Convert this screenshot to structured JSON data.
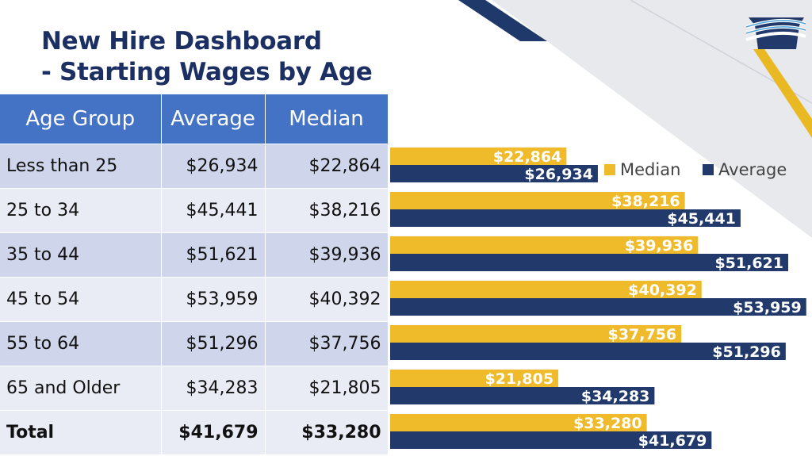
{
  "title_line1": "New Hire Dashboard",
  "title_line2": "- Starting Wages by Age",
  "table": {
    "headers": [
      "Age Group",
      "Average",
      "Median"
    ],
    "rows": [
      {
        "age": "Less than 25",
        "average": "$26,934",
        "median": "$22,864"
      },
      {
        "age": "25 to 34",
        "average": "$45,441",
        "median": "$38,216"
      },
      {
        "age": "35 to 44",
        "average": "$51,621",
        "median": "$39,936"
      },
      {
        "age": "45 to 54",
        "average": "$53,959",
        "median": "$40,392"
      },
      {
        "age": "55 to 64",
        "average": "$51,296",
        "median": "$37,756"
      },
      {
        "age": "65 and Older",
        "average": "$34,283",
        "median": "$21,805"
      },
      {
        "age": "Total",
        "average": "$41,679",
        "median": "$33,280"
      }
    ]
  },
  "colors": {
    "title": "#1c2f62",
    "header_bg": "#4472c4",
    "median": "#f0bb2b",
    "average": "#213a6b",
    "row_dark": "#cfd5ea",
    "row_light": "#e9ebf5"
  },
  "chart_data": {
    "type": "bar",
    "orientation": "horizontal",
    "categories": [
      "Less than 25",
      "25 to 34",
      "35 to 44",
      "45 to 54",
      "55 to 64",
      "65 and Older",
      "Total"
    ],
    "series": [
      {
        "name": "Median",
        "color": "#f0bb2b",
        "values": [
          22864,
          38216,
          39936,
          40392,
          37756,
          21805,
          33280
        ],
        "labels": [
          "$22,864",
          "$38,216",
          "$39,936",
          "$40,392",
          "$37,756",
          "$21,805",
          "$33,280"
        ]
      },
      {
        "name": "Average",
        "color": "#213a6b",
        "values": [
          26934,
          45441,
          51621,
          53959,
          51296,
          34283,
          41679
        ],
        "labels": [
          "$26,934",
          "$45,441",
          "$51,621",
          "$53,959",
          "$51,296",
          "$34,283",
          "$41,679"
        ]
      }
    ],
    "xlim": [
      0,
      54500
    ],
    "legend": "top-right",
    "grid": false
  }
}
